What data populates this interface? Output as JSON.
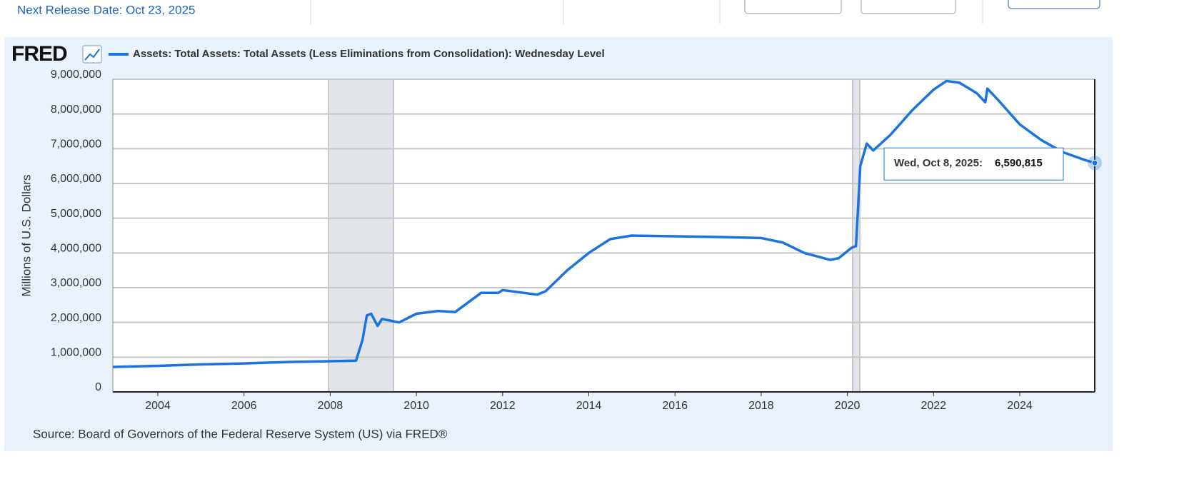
{
  "header": {
    "next_release": "Next Release Date: Oct 23, 2025"
  },
  "chart_data": {
    "type": "line",
    "logo": "FRED",
    "title": "Assets: Total Assets: Total Assets (Less Eliminations from Consolidation): Wednesday Level",
    "y_label": "Millions of U.S. Dollars",
    "source": "Source: Board of Governors of the Federal Reserve System (US) via FRED®",
    "tooltip_date": "Wed, Oct 8, 2025:",
    "xlim": [
      2002.956,
      2025.74
    ],
    "xticks": [
      2004,
      2006,
      2008,
      2010,
      2012,
      2014,
      2016,
      2018,
      2020,
      2022,
      2024
    ],
    "ylim": [
      0,
      9000000
    ],
    "yticks": [
      0,
      {
        "value": 1000000,
        "label": "1,000,000"
      },
      {
        "value": 2000000,
        "label": "2,000,000"
      },
      {
        "value": 3000000,
        "label": "3,000,000"
      },
      {
        "value": 4000000,
        "label": "4,000,000"
      },
      {
        "value": 5000000,
        "label": "5,000,000"
      },
      {
        "value": 6000000,
        "label": "6,000,000"
      },
      {
        "value": 7000000,
        "label": "7,000,000"
      },
      {
        "value": 8000000,
        "label": "8,000,000"
      },
      {
        "value": 9000000,
        "label": "9,000,000"
      }
    ],
    "grid": true,
    "recessions": [
      [
        2007.96,
        2009.47
      ],
      [
        2020.12,
        2020.29
      ]
    ],
    "x": [
      2002.96,
      2004,
      2005,
      2006,
      2007,
      2007.9,
      2008.6,
      2008.75,
      2008.85,
      2008.95,
      2009.1,
      2009.2,
      2009.4,
      2009.6,
      2010,
      2010.5,
      2010.9,
      2011.5,
      2011.9,
      2012.0,
      2012.5,
      2012.8,
      2013,
      2013.5,
      2014,
      2014.5,
      2015,
      2016,
      2017,
      2018,
      2018.5,
      2019,
      2019.6,
      2019.8,
      2020.1,
      2020.2,
      2020.3,
      2020.45,
      2020.6,
      2021,
      2021.5,
      2022,
      2022.3,
      2022.6,
      2023,
      2023.2,
      2023.25,
      2023.5,
      2024,
      2024.5,
      2025,
      2025.5,
      2025.74
    ],
    "series": [
      {
        "name": "Assets: Total Assets: Total Assets (Less Eliminations from Consolidation): Wednesday Level",
        "color": "#1a73e0",
        "values": [
          720000,
          750000,
          790000,
          820000,
          860000,
          880000,
          900000,
          1500000,
          2200000,
          2250000,
          1900000,
          2100000,
          2050000,
          2000000,
          2250000,
          2330000,
          2300000,
          2850000,
          2850000,
          2930000,
          2850000,
          2800000,
          2900000,
          3500000,
          4000000,
          4400000,
          4500000,
          4480000,
          4460000,
          4430000,
          4300000,
          4000000,
          3800000,
          3850000,
          4150000,
          4200000,
          6500000,
          7150000,
          6950000,
          7400000,
          8100000,
          8700000,
          8950000,
          8900000,
          8600000,
          8340000,
          8730000,
          8400000,
          7700000,
          7250000,
          6900000,
          6680000,
          6590815
        ],
        "value_labels": [
          null,
          null,
          null,
          null,
          null,
          null,
          null,
          null,
          null,
          null,
          null,
          null,
          null,
          null,
          null,
          null,
          null,
          null,
          null,
          null,
          null,
          null,
          null,
          null,
          null,
          null,
          null,
          null,
          null,
          null,
          null,
          null,
          null,
          null,
          null,
          null,
          null,
          null,
          null,
          null,
          null,
          null,
          null,
          null,
          null,
          null,
          null,
          null,
          null,
          null,
          null,
          null,
          "6,590,815"
        ]
      }
    ]
  }
}
